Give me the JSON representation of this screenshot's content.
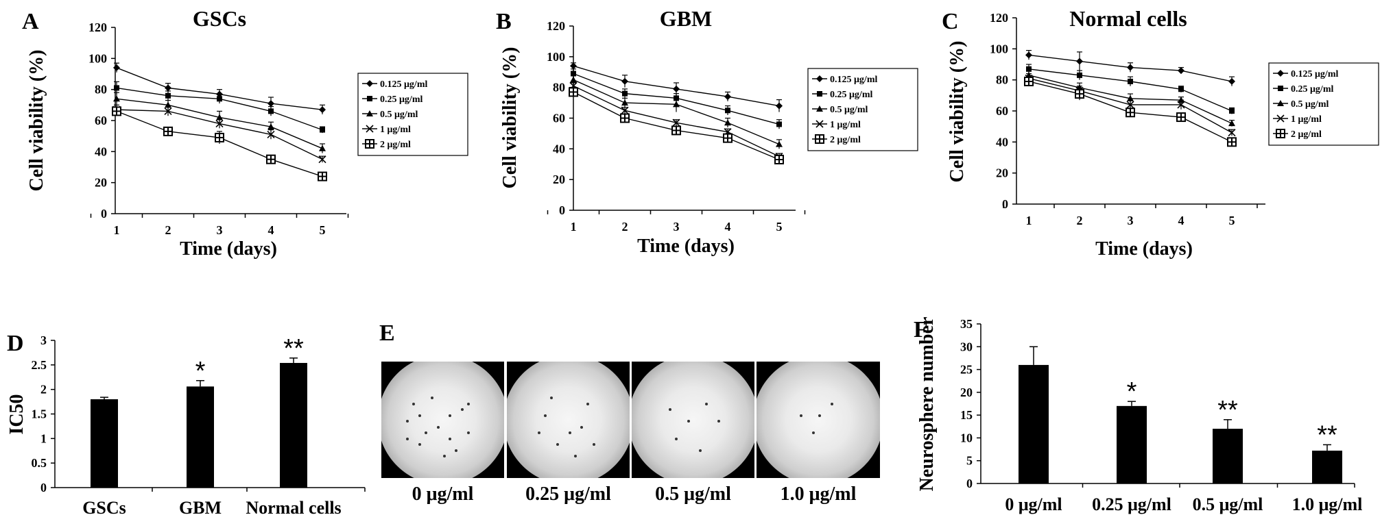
{
  "figure": {
    "panels": {
      "A": "A",
      "B": "B",
      "C": "C",
      "D": "D",
      "E": "E",
      "F": "F"
    },
    "legend_entries": [
      "0.125 μg/ml",
      "0.25 μg/ml",
      "0.5 μg/ml",
      "1 μg/ml",
      "2 μg/ml"
    ],
    "micrograph_labels": [
      "0 μg/ml",
      "0.25 μg/ml",
      "0.5 μg/ml",
      "1.0 μg/ml"
    ]
  },
  "chart_data": [
    {
      "id": "A",
      "type": "line",
      "title": "GSCs",
      "xlabel": "Time (days)",
      "ylabel": "Cell viability (%)",
      "x": [
        1,
        2,
        3,
        4,
        5
      ],
      "ylim": [
        0,
        120
      ],
      "yticks": [
        0,
        20,
        40,
        60,
        80,
        100,
        120
      ],
      "grid": false,
      "legend": "right",
      "series": [
        {
          "name": "0.125 μg/ml",
          "marker": "diamond",
          "values": [
            94,
            81,
            77,
            71,
            67
          ],
          "err": [
            3,
            3,
            3,
            4,
            3
          ]
        },
        {
          "name": "0.25 μg/ml",
          "marker": "square",
          "values": [
            81,
            76,
            74,
            66,
            54
          ],
          "err": [
            4,
            3,
            3,
            3,
            2
          ]
        },
        {
          "name": "0.5 μg/ml",
          "marker": "triangle",
          "values": [
            74,
            70,
            62,
            56,
            42
          ],
          "err": [
            4,
            3,
            4,
            3,
            3
          ]
        },
        {
          "name": "1 μg/ml",
          "marker": "x",
          "values": [
            67,
            66,
            58,
            51,
            35
          ],
          "err": [
            3,
            3,
            3,
            3,
            2
          ]
        },
        {
          "name": "2 μg/ml",
          "marker": "plus-square",
          "values": [
            66,
            53,
            49,
            35,
            24
          ],
          "err": [
            2,
            2,
            4,
            2,
            2
          ]
        }
      ]
    },
    {
      "id": "B",
      "type": "line",
      "title": "GBM",
      "xlabel": "Time (days)",
      "ylabel": "Cell viability (%)",
      "x": [
        1,
        2,
        3,
        4,
        5
      ],
      "ylim": [
        0,
        120
      ],
      "yticks": [
        0,
        20,
        40,
        60,
        80,
        100,
        120
      ],
      "grid": false,
      "legend": "right",
      "series": [
        {
          "name": "0.125 μg/ml",
          "marker": "diamond",
          "values": [
            94,
            84,
            79,
            74,
            68
          ],
          "err": [
            2,
            4,
            4,
            3,
            4
          ]
        },
        {
          "name": "0.25 μg/ml",
          "marker": "square",
          "values": [
            89,
            76,
            73,
            65,
            56
          ],
          "err": [
            3,
            3,
            3,
            3,
            3
          ]
        },
        {
          "name": "0.5 μg/ml",
          "marker": "triangle",
          "values": [
            85,
            70,
            69,
            57,
            43
          ],
          "err": [
            3,
            3,
            5,
            3,
            3
          ]
        },
        {
          "name": "1 μg/ml",
          "marker": "x",
          "values": [
            81,
            65,
            57,
            51,
            35
          ],
          "err": [
            2,
            2,
            2,
            2,
            2
          ]
        },
        {
          "name": "2 μg/ml",
          "marker": "plus-square",
          "values": [
            77,
            60,
            52,
            47,
            33
          ],
          "err": [
            2,
            2,
            2,
            2,
            2
          ]
        }
      ]
    },
    {
      "id": "C",
      "type": "line",
      "title": "Normal cells",
      "xlabel": "Time (days)",
      "ylabel": "Cell viability (%)",
      "x": [
        1,
        2,
        3,
        4,
        5
      ],
      "ylim": [
        0,
        120
      ],
      "yticks": [
        0,
        20,
        40,
        60,
        80,
        100,
        120
      ],
      "grid": false,
      "legend": "right",
      "series": [
        {
          "name": "0.125 μg/ml",
          "marker": "diamond",
          "values": [
            96,
            92,
            88,
            86,
            79
          ],
          "err": [
            3,
            6,
            3,
            2,
            3
          ]
        },
        {
          "name": "0.25 μg/ml",
          "marker": "square",
          "values": [
            87,
            83,
            79,
            74,
            60
          ],
          "err": [
            3,
            3,
            3,
            2,
            2
          ]
        },
        {
          "name": "0.5 μg/ml",
          "marker": "triangle",
          "values": [
            83,
            75,
            68,
            67,
            52
          ],
          "err": [
            3,
            3,
            3,
            2,
            2
          ]
        },
        {
          "name": "1 μg/ml",
          "marker": "x",
          "values": [
            81,
            73,
            64,
            64,
            46
          ],
          "err": [
            3,
            3,
            3,
            3,
            2
          ]
        },
        {
          "name": "2 μg/ml",
          "marker": "plus-square",
          "values": [
            79,
            71,
            59,
            56,
            40
          ],
          "err": [
            3,
            4,
            2,
            2,
            2
          ]
        }
      ]
    },
    {
      "id": "D",
      "type": "bar",
      "title": "",
      "xlabel": "",
      "ylabel": "IC50",
      "categories": [
        "GSCs",
        "GBM",
        "Normal cells"
      ],
      "values": [
        1.8,
        2.06,
        2.54
      ],
      "err": [
        0.04,
        0.12,
        0.1
      ],
      "significance": [
        "",
        "*",
        "**"
      ],
      "ylim": [
        0,
        3
      ],
      "yticks": [
        "0",
        "0.5",
        "1",
        "1.5",
        "2",
        "2.5",
        "3"
      ],
      "grid": false
    },
    {
      "id": "F",
      "type": "bar",
      "title": "",
      "xlabel": "",
      "ylabel": "Neurosphere number",
      "categories": [
        "0 μg/ml",
        "0.25 μg/ml",
        "0.5 μg/ml",
        "1.0 μg/ml"
      ],
      "values": [
        26,
        17,
        12,
        7.2
      ],
      "err": [
        4,
        1,
        2,
        1.3
      ],
      "significance": [
        "",
        "*",
        "**",
        "**"
      ],
      "ylim": [
        0,
        35
      ],
      "yticks": [
        "0",
        "5",
        "10",
        "15",
        "20",
        "25",
        "30",
        "35"
      ],
      "grid": false
    }
  ]
}
